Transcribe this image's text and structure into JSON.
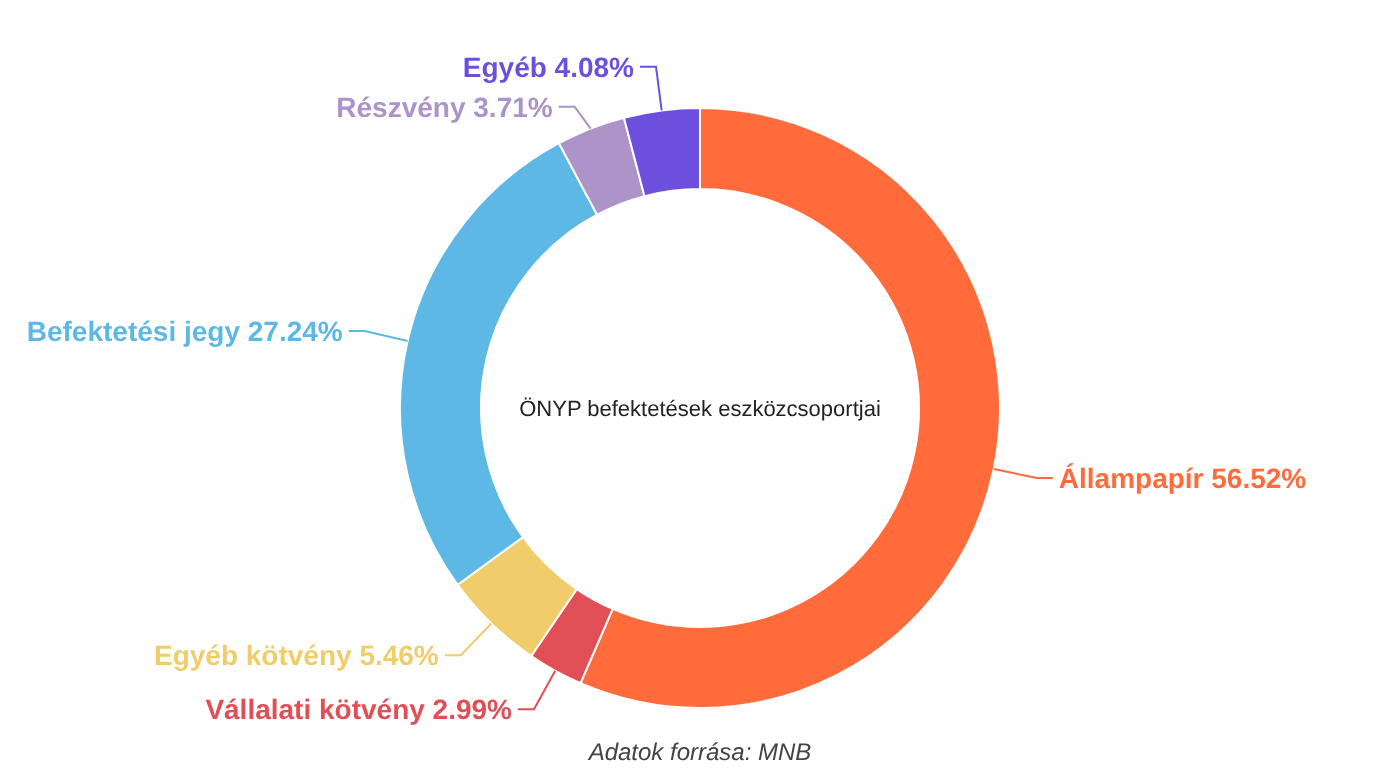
{
  "chart_data": {
    "type": "donut",
    "title": "ÖNYP befektetések eszközcsoportjai",
    "categories": [
      "Állampapír",
      "Vállalati kötvény",
      "Egyéb kötvény",
      "Befektetési jegy",
      "Részvény",
      "Egyéb"
    ],
    "values": [
      56.52,
      2.99,
      5.46,
      27.24,
      3.71,
      4.08
    ],
    "colors": [
      "#ff6b3a",
      "#e04f56",
      "#f0cc6a",
      "#5db8e6",
      "#ad93c8",
      "#6c4fdc"
    ],
    "value_labels": [
      "56.52%",
      "2.99%",
      "5.46%",
      "27.24%",
      "3.71%",
      "4.08%"
    ],
    "annotations": [
      "Adatok forrása: MNB"
    ]
  }
}
